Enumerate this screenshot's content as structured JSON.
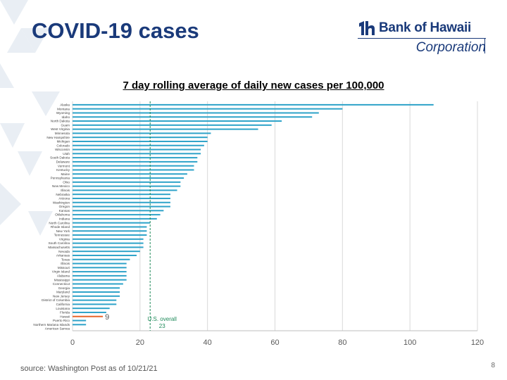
{
  "slide": {
    "title": "COVID-19 cases",
    "source": "source: Washington Post as of 10/21/21",
    "page_number": "8"
  },
  "logo": {
    "name": "Bank of Hawaii",
    "subtitle": "Corporation"
  },
  "colors": {
    "title": "#1a3a7a",
    "bar": "#2ea3c9",
    "highlight_bar": "#e8672a",
    "reference_line": "#1f8a5a",
    "grid": "#d9d9d9"
  },
  "chart_data": {
    "type": "bar",
    "orientation": "horizontal",
    "title": "7 day rolling average of daily new cases per 100,000",
    "xlim": [
      0,
      120
    ],
    "xticks": [
      0,
      20,
      40,
      60,
      80,
      100,
      120
    ],
    "grid": true,
    "categories": [
      "Alaska",
      "Montana",
      "Wyoming",
      "Idaho",
      "North Dakota",
      "Guam",
      "West Virginia",
      "Minnesota",
      "New Hampshire",
      "Michigan",
      "Colorado",
      "Wisconsin",
      "Utah",
      "South Dakota",
      "Delaware",
      "Vermont",
      "Kentucky",
      "Maine",
      "Pennsylvania",
      "Ohio",
      "New Mexico",
      "Illinois",
      "Nebraska",
      "Arizona",
      "Washington",
      "Oregon",
      "Kansas",
      "Oklahoma",
      "Indiana",
      "North Carolina",
      "Rhode Island",
      "New York",
      "Tennessee",
      "Virginia",
      "South Carolina",
      "Massachusetts",
      "Nevada",
      "Arkansas",
      "Texas",
      "Illinois",
      "Missouri",
      "Virgin Island",
      "Alabama",
      "Mississippi",
      "Connecticut",
      "Georgia",
      "Maryland",
      "New Jersey",
      "District of Columbia",
      "California",
      "Louisiana",
      "Florida",
      "Hawaii",
      "Puerto Rico",
      "Northern Mariana Islands",
      "American Samoa"
    ],
    "values": [
      107,
      80,
      73,
      71,
      62,
      59,
      55,
      41,
      40,
      40,
      39,
      38,
      38,
      37,
      37,
      36,
      36,
      34,
      33,
      32,
      32,
      31,
      29,
      29,
      29,
      29,
      27,
      26,
      25,
      23,
      22,
      22,
      22,
      21,
      21,
      21,
      20,
      19,
      17,
      16,
      16,
      16,
      16,
      16,
      15,
      14,
      14,
      14,
      13,
      13,
      11,
      10,
      9,
      4,
      4,
      0
    ],
    "highlight": "Hawaii",
    "highlight_label": "9",
    "reference_line": {
      "value": 23,
      "label_line1": "U.S. overall",
      "label_line2": "23"
    }
  }
}
